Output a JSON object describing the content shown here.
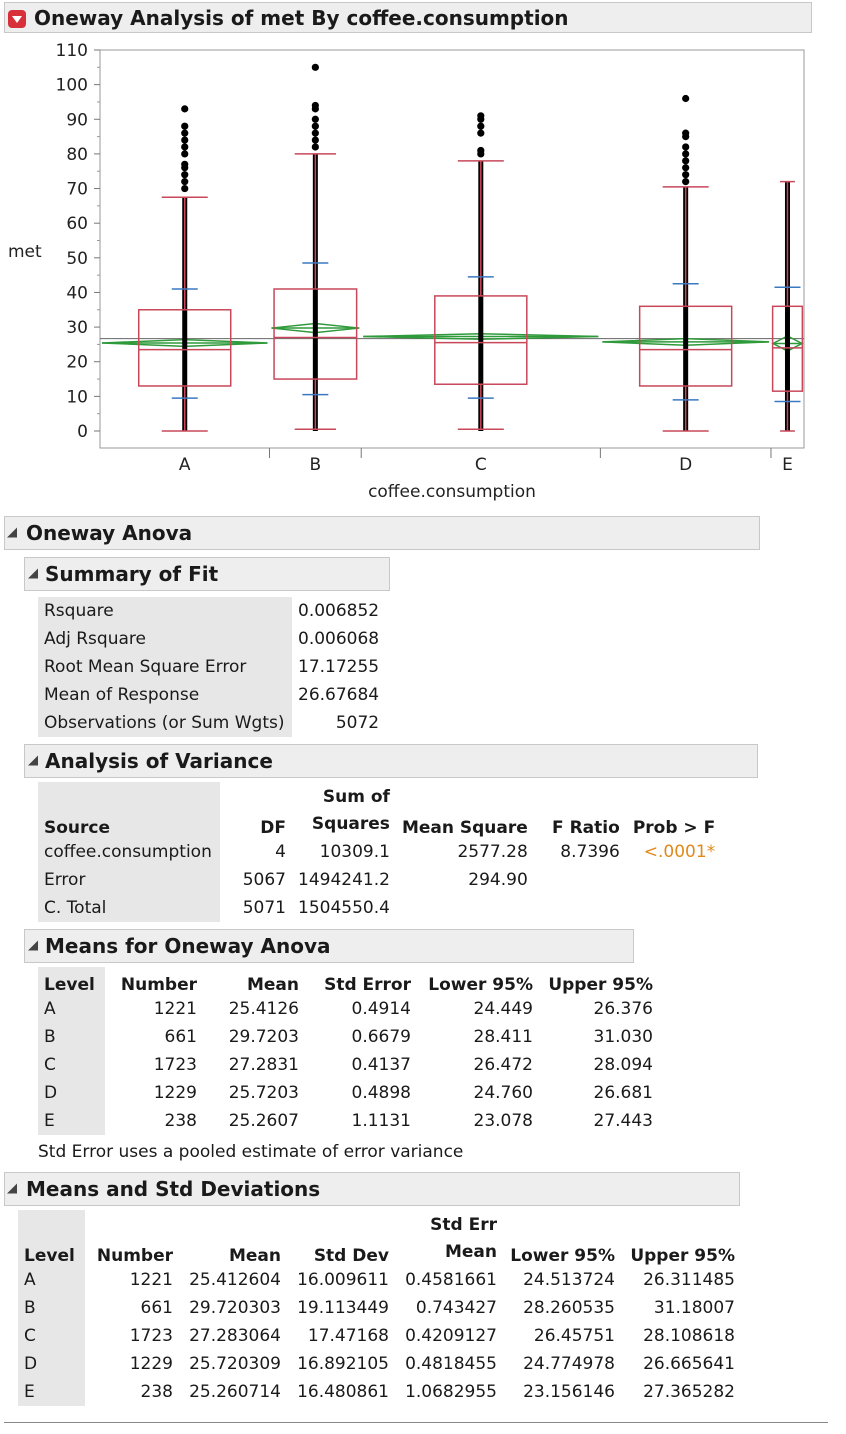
{
  "report": {
    "title": "Oneway Analysis of met By coffee.consumption"
  },
  "colors": {
    "box": "#c8485a",
    "points": "#000000",
    "diamond": "#2e9a3a",
    "quantile": "#3a78c0",
    "significant": "#e08a1e",
    "header_bg": "#eeeeee",
    "row_label_bg": "#e7e7e7"
  },
  "chart_data": {
    "type": "box",
    "xlabel": "coffee.consumption",
    "ylabel": "met",
    "ylim": [
      0,
      110
    ],
    "yticks": [
      "0",
      "10",
      "20",
      "30",
      "40",
      "50",
      "60",
      "70",
      "80",
      "90",
      "100",
      "110"
    ],
    "grand_mean": 26.67684,
    "groups": [
      {
        "level": "A",
        "n": 1221,
        "mean": 25.4126,
        "min": 0,
        "q1": 13,
        "median": 23.5,
        "q3": 35,
        "whisker_low": 0,
        "whisker_high": 67.5,
        "p10": 9.5,
        "p90": 41,
        "ci": [
          24.449,
          26.376
        ],
        "outliers": [
          70,
          72,
          74,
          76,
          77,
          80,
          82,
          84,
          86,
          88,
          93
        ]
      },
      {
        "level": "B",
        "n": 661,
        "mean": 29.7203,
        "min": 0,
        "q1": 15,
        "median": 27,
        "q3": 41,
        "whisker_low": 0.5,
        "whisker_high": 80,
        "p10": 10.5,
        "p90": 48.5,
        "ci": [
          28.411,
          31.03
        ],
        "outliers": [
          82,
          84,
          86,
          88,
          90,
          93,
          94,
          105
        ]
      },
      {
        "level": "C",
        "n": 1723,
        "mean": 27.2831,
        "min": 0,
        "q1": 13.5,
        "median": 25.5,
        "q3": 39,
        "whisker_low": 0.5,
        "whisker_high": 78,
        "p10": 9.5,
        "p90": 44.5,
        "ci": [
          26.472,
          28.094
        ],
        "outliers": [
          80,
          81,
          86,
          88,
          90,
          91
        ]
      },
      {
        "level": "D",
        "n": 1229,
        "mean": 25.7203,
        "min": 0,
        "q1": 13,
        "median": 23.5,
        "q3": 36,
        "whisker_low": 0,
        "whisker_high": 70.5,
        "p10": 9,
        "p90": 42.5,
        "ci": [
          24.76,
          26.681
        ],
        "outliers": [
          72,
          74,
          76,
          78,
          80,
          82,
          85,
          86,
          96
        ]
      },
      {
        "level": "E",
        "n": 238,
        "mean": 25.2607,
        "min": 0,
        "q1": 11.5,
        "median": 24,
        "q3": 36,
        "whisker_low": 0,
        "whisker_high": 72,
        "p10": 8.5,
        "p90": 41.5,
        "ci": [
          23.078,
          27.443
        ],
        "outliers": []
      }
    ]
  },
  "oneway_anova": {
    "title": "Oneway Anova",
    "summary_of_fit": {
      "title": "Summary of Fit",
      "rows": [
        {
          "label": "Rsquare",
          "value": "0.006852"
        },
        {
          "label": "Adj Rsquare",
          "value": "0.006068"
        },
        {
          "label": "Root Mean Square Error",
          "value": "17.17255"
        },
        {
          "label": "Mean of Response",
          "value": "26.67684"
        },
        {
          "label": "Observations (or Sum Wgts)",
          "value": "5072"
        }
      ]
    },
    "analysis_of_variance": {
      "title": "Analysis of Variance",
      "headers": {
        "source": "Source",
        "df": "DF",
        "ss_top": "Sum of",
        "ss_bottom": "Squares",
        "ms": "Mean Square",
        "f": "F Ratio",
        "p": "Prob > F"
      },
      "rows": [
        {
          "source": "coffee.consumption",
          "df": "4",
          "ss": "10309.1",
          "ms": "2577.28",
          "f": "8.7396",
          "p": "<.0001*"
        },
        {
          "source": "Error",
          "df": "5067",
          "ss": "1494241.2",
          "ms": "294.90",
          "f": "",
          "p": ""
        },
        {
          "source": "C. Total",
          "df": "5071",
          "ss": "1504550.4",
          "ms": "",
          "f": "",
          "p": ""
        }
      ]
    },
    "means": {
      "title": "Means for Oneway Anova",
      "headers": [
        "Level",
        "Number",
        "Mean",
        "Std Error",
        "Lower 95%",
        "Upper 95%"
      ],
      "rows": [
        [
          "A",
          "1221",
          "25.4126",
          "0.4914",
          "24.449",
          "26.376"
        ],
        [
          "B",
          "661",
          "29.7203",
          "0.6679",
          "28.411",
          "31.030"
        ],
        [
          "C",
          "1723",
          "27.2831",
          "0.4137",
          "26.472",
          "28.094"
        ],
        [
          "D",
          "1229",
          "25.7203",
          "0.4898",
          "24.760",
          "26.681"
        ],
        [
          "E",
          "238",
          "25.2607",
          "1.1131",
          "23.078",
          "27.443"
        ]
      ],
      "note": "Std Error uses a pooled estimate of error variance"
    }
  },
  "means_std": {
    "title": "Means and Std Deviations",
    "headers": {
      "level": "Level",
      "number": "Number",
      "mean": "Mean",
      "sd": "Std Dev",
      "sem_top": "Std Err",
      "sem_bottom": "Mean",
      "lower": "Lower 95%",
      "upper": "Upper 95%"
    },
    "rows": [
      [
        "A",
        "1221",
        "25.412604",
        "16.009611",
        "0.4581661",
        "24.513724",
        "26.311485"
      ],
      [
        "B",
        "661",
        "29.720303",
        "19.113449",
        "0.743427",
        "28.260535",
        "31.18007"
      ],
      [
        "C",
        "1723",
        "27.283064",
        "17.47168",
        "0.4209127",
        "26.45751",
        "28.108618"
      ],
      [
        "D",
        "1229",
        "25.720309",
        "16.892105",
        "0.4818455",
        "24.774978",
        "26.665641"
      ],
      [
        "E",
        "238",
        "25.260714",
        "16.480861",
        "1.0682955",
        "23.156146",
        "27.365282"
      ]
    ]
  }
}
